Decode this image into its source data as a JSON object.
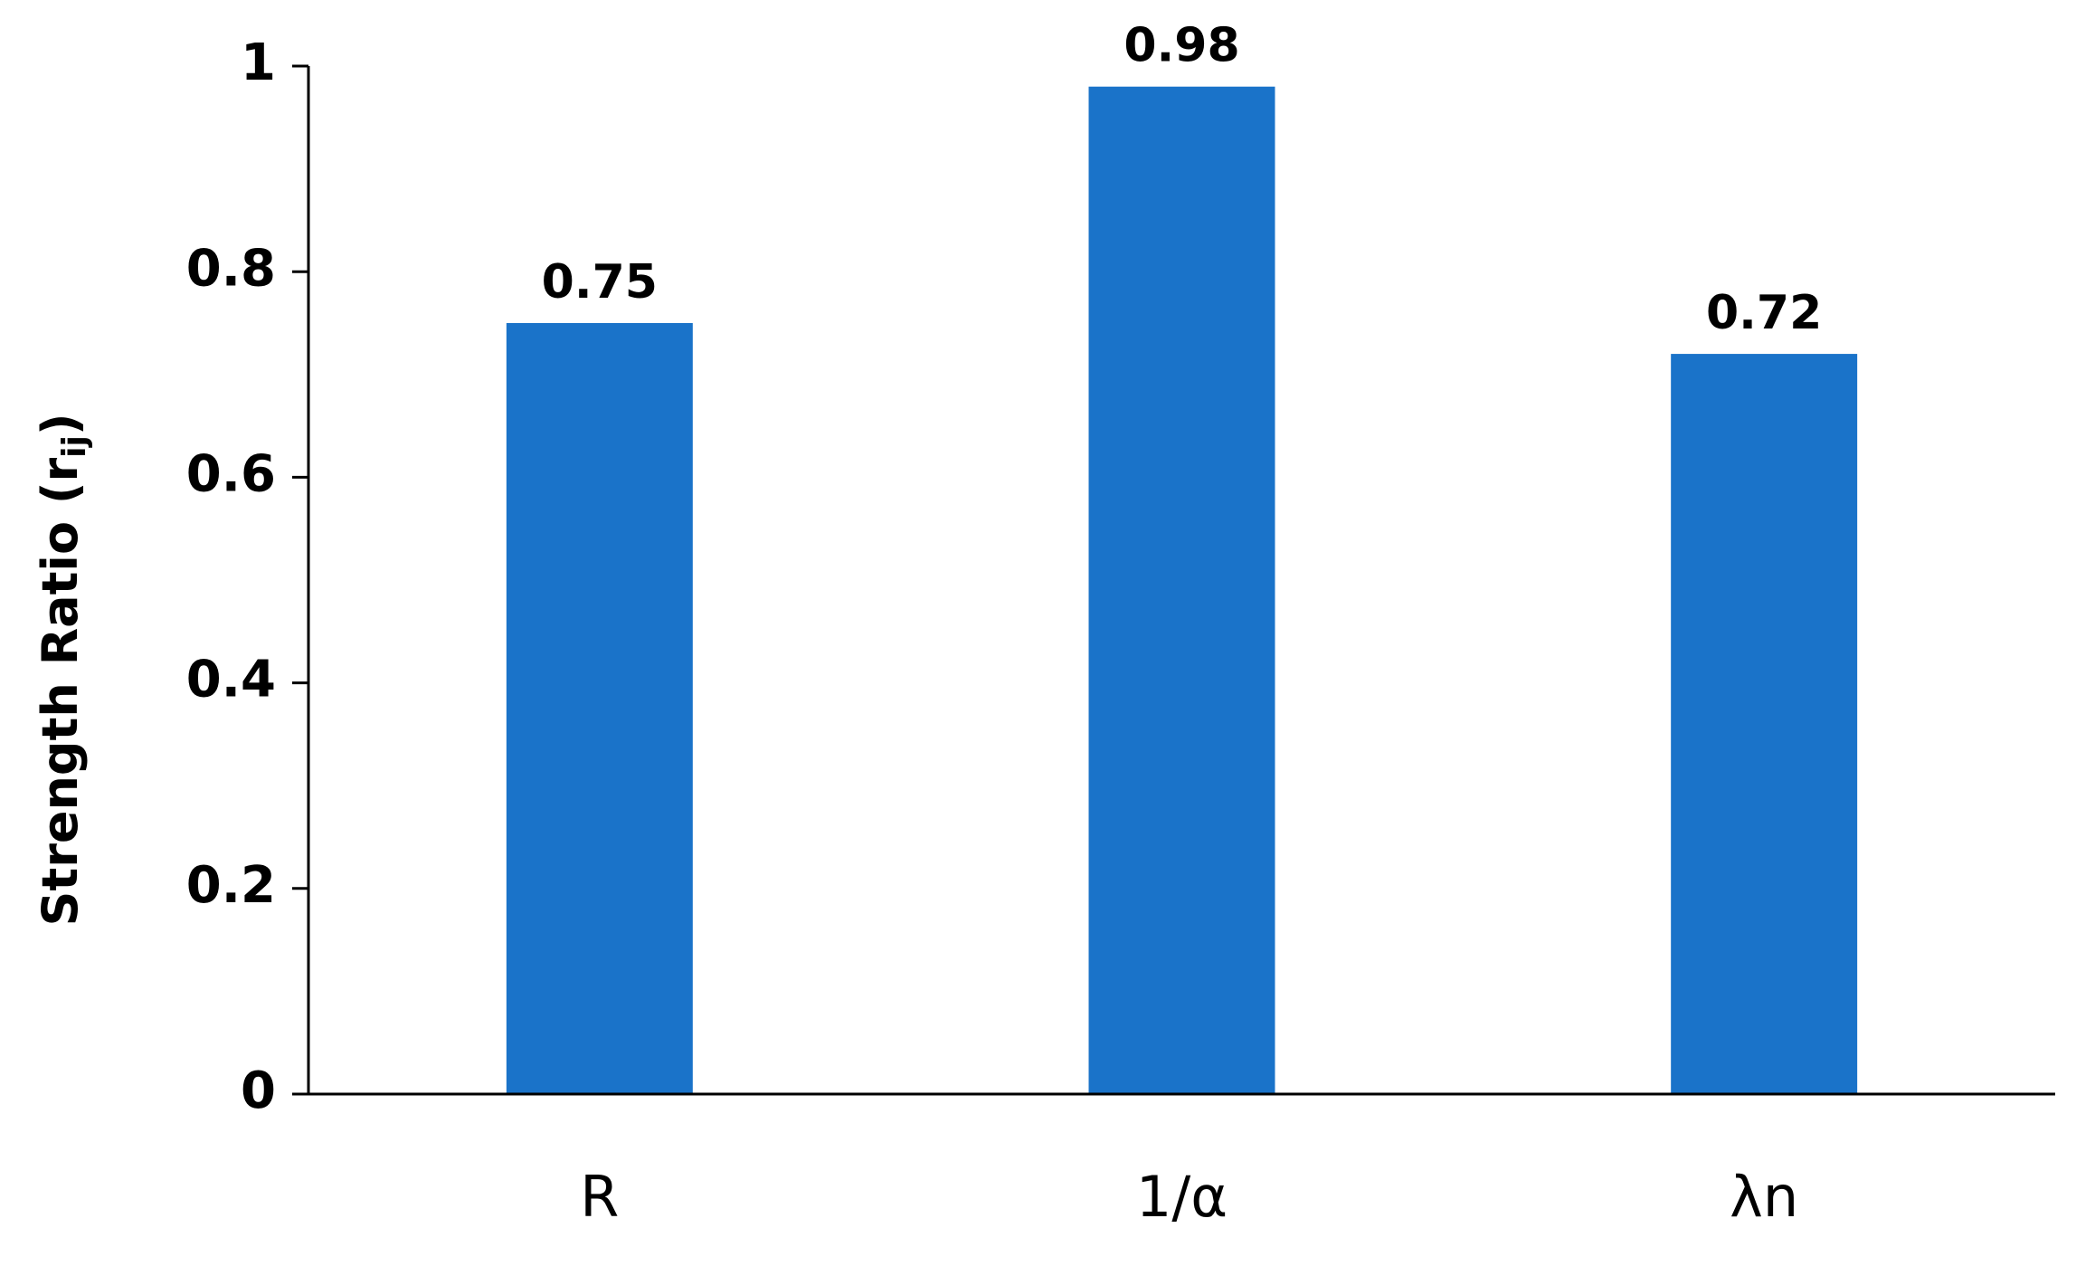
{
  "chart_data": {
    "type": "bar",
    "ylabel": [
      "Strength Ratio (r",
      "ij",
      ")"
    ],
    "categories": [
      "R",
      "1/α",
      "λn"
    ],
    "values": [
      0.75,
      0.98,
      0.72
    ],
    "color": "#1a73c9",
    "ylim": [
      0,
      1
    ],
    "yticks": [
      0,
      0.2,
      0.4,
      0.6,
      0.8,
      1
    ],
    "grid": false
  }
}
